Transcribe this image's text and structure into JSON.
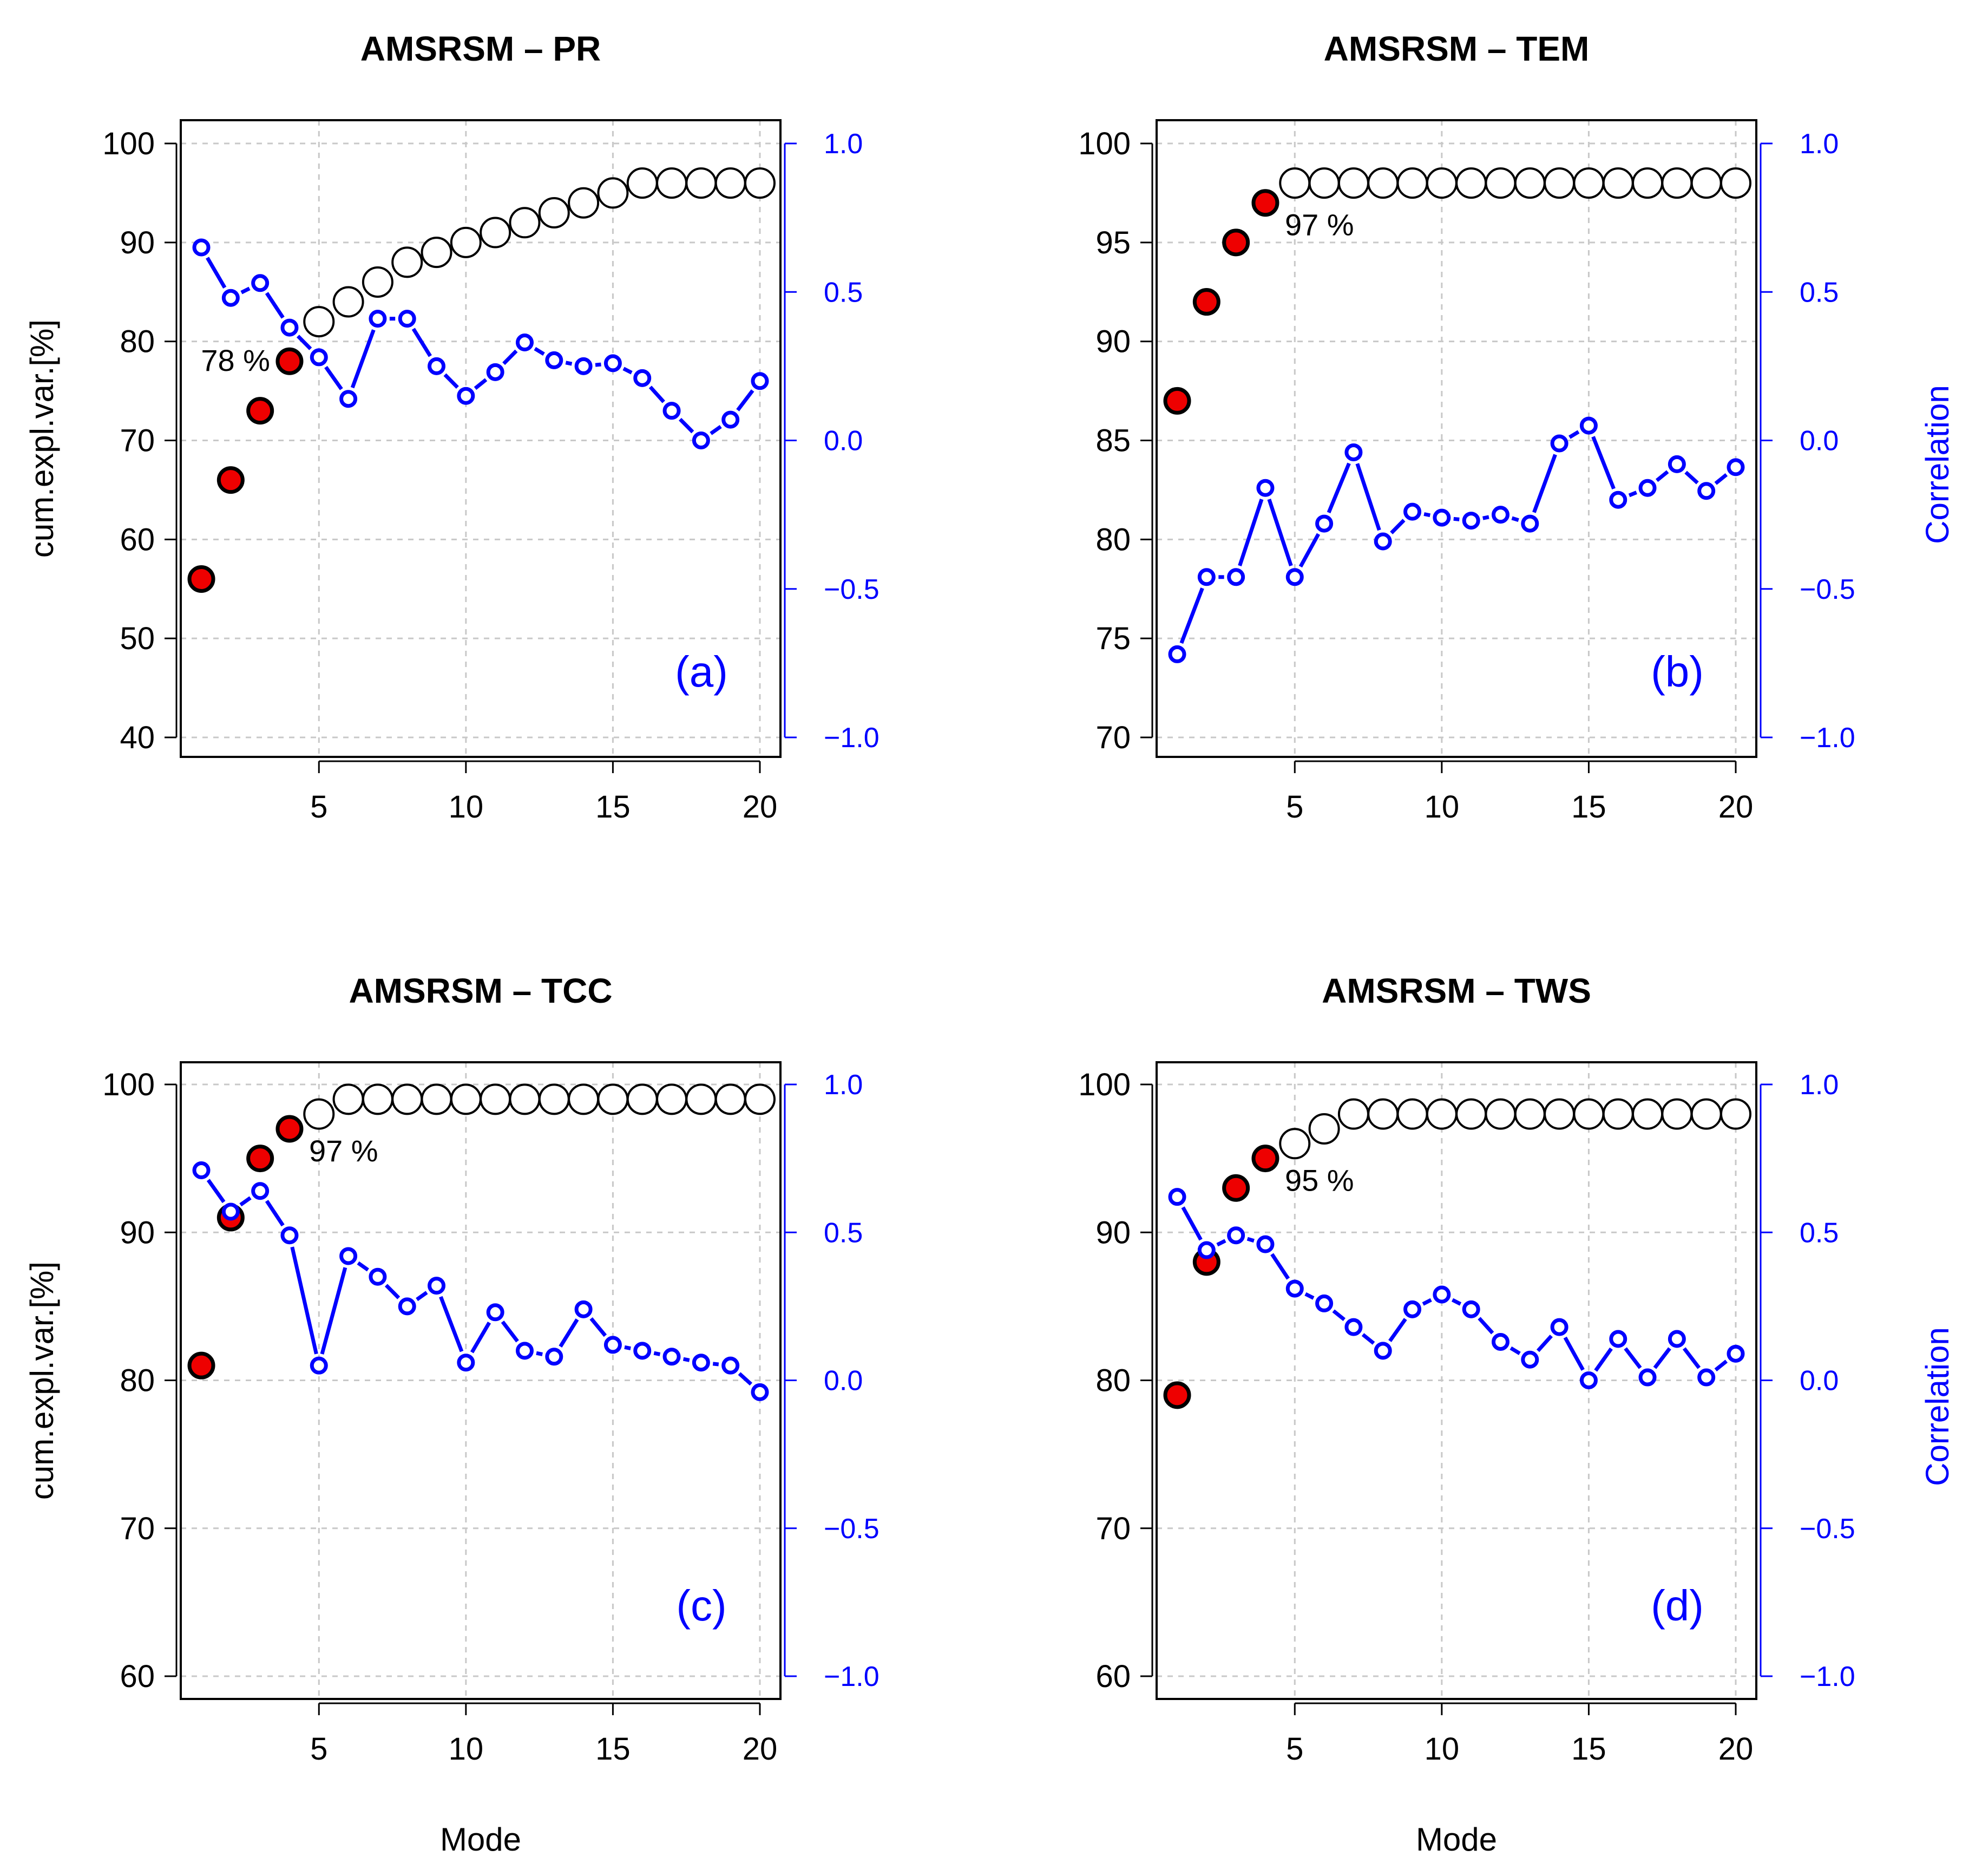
{
  "colors": {
    "correlation": "#0000ff",
    "highlight_fill": "#ee0000",
    "axis": "#000000",
    "grid": "#c8c8c8"
  },
  "shared": {
    "x_label": "Mode",
    "left_ylabel": "cum.expl.var.[%]",
    "right_ylabel": "Correlation",
    "x_ticks": [
      5,
      10,
      15,
      20
    ],
    "right_ticks": [
      1.0,
      0.5,
      0.0,
      -0.5,
      -1.0
    ],
    "right_tick_labels": [
      "1.0",
      "0.5",
      "0.0",
      "−0.5",
      "−1.0"
    ],
    "right_ylim": [
      -1.0,
      1.0
    ]
  },
  "chart_data": [
    {
      "type": "scatter",
      "title": "AMSRSM – PR",
      "panel_label": "(a)",
      "annotation": "78 %",
      "highlight_count": 4,
      "x": [
        1,
        2,
        3,
        4,
        5,
        6,
        7,
        8,
        9,
        10,
        11,
        12,
        13,
        14,
        15,
        16,
        17,
        18,
        19,
        20
      ],
      "left_ylim": [
        40,
        100
      ],
      "left_ticks": [
        40,
        50,
        60,
        70,
        80,
        90,
        100
      ],
      "cum_expl_var": [
        56,
        66,
        73,
        78,
        82,
        84,
        86,
        88,
        89,
        90,
        91,
        92,
        93,
        94,
        95,
        96,
        96,
        96,
        96,
        96
      ],
      "correlation": [
        0.65,
        0.48,
        0.53,
        0.38,
        0.28,
        0.14,
        0.41,
        0.41,
        0.25,
        0.15,
        0.23,
        0.33,
        0.27,
        0.25,
        0.26,
        0.21,
        0.1,
        0.0,
        0.07,
        0.2
      ],
      "grid": true
    },
    {
      "type": "scatter",
      "title": "AMSRSM – TEM",
      "panel_label": "(b)",
      "annotation": "97 %",
      "highlight_count": 4,
      "x": [
        1,
        2,
        3,
        4,
        5,
        6,
        7,
        8,
        9,
        10,
        11,
        12,
        13,
        14,
        15,
        16,
        17,
        18,
        19,
        20
      ],
      "left_ylim": [
        70,
        100
      ],
      "left_ticks": [
        70,
        75,
        80,
        85,
        90,
        95,
        100
      ],
      "cum_expl_var": [
        87,
        92,
        95,
        97,
        98,
        98,
        98,
        98,
        98,
        98,
        98,
        98,
        98,
        98,
        98,
        98,
        98,
        98,
        98,
        98
      ],
      "correlation": [
        -0.72,
        -0.46,
        -0.46,
        -0.16,
        -0.46,
        -0.28,
        -0.04,
        -0.34,
        -0.24,
        -0.26,
        -0.27,
        -0.25,
        -0.28,
        -0.01,
        0.05,
        -0.2,
        -0.16,
        -0.08,
        -0.17,
        -0.09
      ],
      "grid": true
    },
    {
      "type": "scatter",
      "title": "AMSRSM – TCC",
      "panel_label": "(c)",
      "annotation": "97 %",
      "highlight_count": 4,
      "x": [
        1,
        2,
        3,
        4,
        5,
        6,
        7,
        8,
        9,
        10,
        11,
        12,
        13,
        14,
        15,
        16,
        17,
        18,
        19,
        20
      ],
      "left_ylim": [
        60,
        100
      ],
      "left_ticks": [
        60,
        70,
        80,
        90,
        100
      ],
      "cum_expl_var": [
        81,
        91,
        95,
        97,
        98,
        99,
        99,
        99,
        99,
        99,
        99,
        99,
        99,
        99,
        99,
        99,
        99,
        99,
        99,
        99
      ],
      "correlation": [
        0.71,
        0.57,
        0.64,
        0.49,
        0.05,
        0.42,
        0.35,
        0.25,
        0.32,
        0.06,
        0.23,
        0.1,
        0.08,
        0.24,
        0.12,
        0.1,
        0.08,
        0.06,
        0.05,
        -0.04
      ],
      "grid": true
    },
    {
      "type": "scatter",
      "title": "AMSRSM – TWS",
      "panel_label": "(d)",
      "annotation": "95 %",
      "highlight_count": 4,
      "x": [
        1,
        2,
        3,
        4,
        5,
        6,
        7,
        8,
        9,
        10,
        11,
        12,
        13,
        14,
        15,
        16,
        17,
        18,
        19,
        20
      ],
      "left_ylim": [
        60,
        100
      ],
      "left_ticks": [
        60,
        70,
        80,
        90,
        100
      ],
      "cum_expl_var": [
        79,
        88,
        93,
        95,
        96,
        97,
        98,
        98,
        98,
        98,
        98,
        98,
        98,
        98,
        98,
        98,
        98,
        98,
        98,
        98
      ],
      "correlation": [
        0.62,
        0.44,
        0.49,
        0.46,
        0.31,
        0.26,
        0.18,
        0.1,
        0.24,
        0.29,
        0.24,
        0.13,
        0.07,
        0.18,
        0.0,
        0.14,
        0.01,
        0.14,
        0.01,
        0.09
      ],
      "grid": true
    }
  ]
}
